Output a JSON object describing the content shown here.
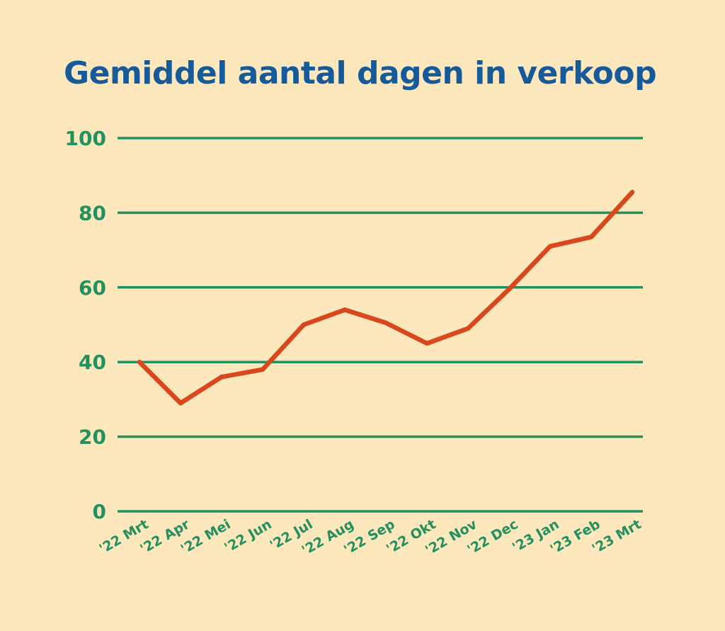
{
  "chart_data": {
    "type": "line",
    "title": "Gemiddel aantal dagen in verkoop",
    "xlabel": "",
    "ylabel": "",
    "categories": [
      "'22 Mrt",
      "'22 Apr",
      "'22 Mei",
      "'22 Jun",
      "'22 Jul",
      "'22 Aug",
      "'22 Sep",
      "'22 Okt",
      "'22 Nov",
      "'22 Dec",
      "'23 Jan",
      "'23 Feb",
      "'23 Mrt"
    ],
    "series": [
      {
        "values": [
          40,
          29,
          36,
          38,
          50,
          54,
          50.5,
          45,
          49,
          59.5,
          71,
          73.5,
          85.5
        ]
      }
    ],
    "ylim": [
      0,
      100
    ],
    "yticks": [
      0,
      20,
      40,
      60,
      80,
      100
    ],
    "grid": true,
    "colors": {
      "background": "#fce8bc",
      "title": "#165a9a",
      "grid": "#23905f",
      "tick_labels": "#23905f",
      "line": "#d9481c"
    }
  }
}
